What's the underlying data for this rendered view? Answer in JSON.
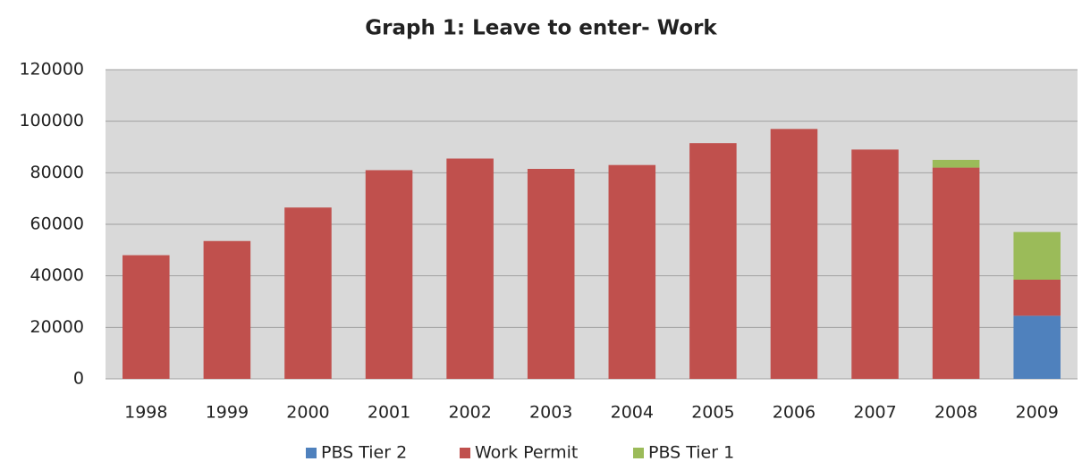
{
  "chart_data": {
    "type": "stacked_bar",
    "title": "Graph 1: Leave to enter- Work",
    "categories": [
      "1998",
      "1999",
      "2000",
      "2001",
      "2002",
      "2003",
      "2004",
      "2005",
      "2006",
      "2007",
      "2008",
      "2009"
    ],
    "series": [
      {
        "name": "PBS Tier 2",
        "color": "#4f81bd",
        "values": [
          null,
          null,
          null,
          null,
          null,
          null,
          null,
          null,
          null,
          null,
          null,
          24500
        ]
      },
      {
        "name": "Work Permit",
        "color": "#c0504d",
        "values": [
          48000,
          53500,
          66500,
          81000,
          85500,
          81500,
          83000,
          91500,
          97000,
          89000,
          82000,
          14000
        ]
      },
      {
        "name": "PBS Tier 1",
        "color": "#9bbb59",
        "values": [
          null,
          null,
          null,
          null,
          null,
          null,
          null,
          null,
          null,
          null,
          3000,
          18500
        ]
      }
    ],
    "ylim": [
      0,
      120000
    ],
    "yticks": [
      0,
      20000,
      40000,
      60000,
      80000,
      100000,
      120000
    ],
    "grid": true,
    "legend": "bottom"
  }
}
